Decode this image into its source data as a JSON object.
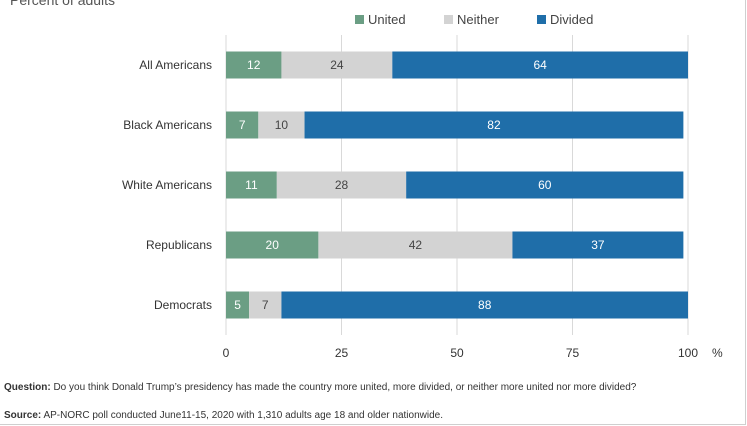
{
  "subtitle": "Percent of adults",
  "legend": [
    {
      "name": "United",
      "color": "#6b9e84"
    },
    {
      "name": "Neither",
      "color": "#d3d3d3"
    },
    {
      "name": "Divided",
      "color": "#1f6ea9"
    }
  ],
  "chart_data": {
    "type": "bar",
    "orientation": "horizontal",
    "stacked": true,
    "categories": [
      "All Americans",
      "Black Americans",
      "White Americans",
      "Republicans",
      "Democrats"
    ],
    "series": [
      {
        "name": "United",
        "values": [
          12,
          7,
          11,
          20,
          5
        ]
      },
      {
        "name": "Neither",
        "values": [
          24,
          10,
          28,
          42,
          7
        ]
      },
      {
        "name": "Divided",
        "values": [
          64,
          82,
          60,
          37,
          88
        ]
      }
    ],
    "xlim": [
      0,
      100
    ],
    "xticks": [
      0,
      25,
      50,
      75,
      100
    ],
    "unit": "%",
    "grid": true,
    "legend_position": "top"
  },
  "footnote": {
    "question_label": "Question:",
    "question_text": " Do you think Donald Trump’s presidency has made the country more united, more divided, or neither more united nor more divided?",
    "source_label": "Source:",
    "source_text": " AP-NORC poll conducted June11-15, 2020 with 1,310 adults age 18 and older nationwide."
  }
}
